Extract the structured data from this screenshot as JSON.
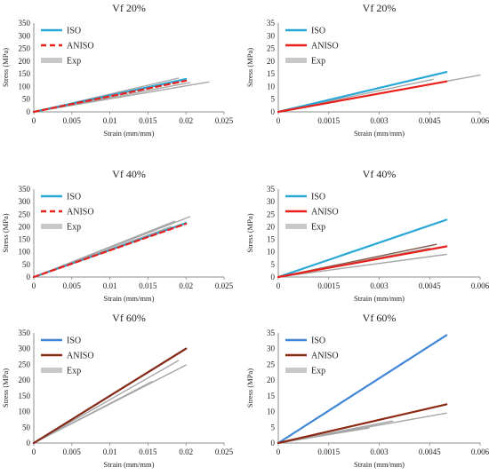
{
  "chart_data": [
    {
      "type": "line",
      "title": "Vf 20%",
      "xlabel": "Strain (mm/mm)",
      "ylabel": "Stress (MPa)",
      "xlim": [
        0,
        0.025
      ],
      "ylim": [
        0,
        350
      ],
      "xticks": [
        "0",
        "0.005",
        "0.01",
        "0.015",
        "0.02",
        "0.025"
      ],
      "yticks": [
        "0",
        "50",
        "100",
        "150",
        "200",
        "250",
        "300",
        "350"
      ],
      "legend": [
        "ISO",
        "ANISO",
        "Exp"
      ],
      "series": [
        {
          "name": "ISO",
          "color": "#29a8d6",
          "style": "solid",
          "x": [
            0,
            0.02
          ],
          "y": [
            0,
            130
          ]
        },
        {
          "name": "ANISO",
          "color": "#e8211d",
          "style": "dashed",
          "x": [
            0,
            0.02
          ],
          "y": [
            0,
            123
          ]
        },
        {
          "name": "Exp",
          "color": "#a6a6a6",
          "style": "solid",
          "x": [
            0,
            0.019
          ],
          "y": [
            0,
            133
          ]
        },
        {
          "name": "Exp",
          "color": "#a6a6a6",
          "style": "solid",
          "x": [
            0,
            0.023
          ],
          "y": [
            0,
            118
          ]
        },
        {
          "name": "Exp",
          "color": "#a6a6a6",
          "style": "solid",
          "x": [
            0,
            0.0205
          ],
          "y": [
            0,
            115
          ]
        }
      ]
    },
    {
      "type": "line",
      "title": "Vf 20%",
      "xlabel": "Strain (mm/mm)",
      "ylabel": "Stress (MPa)",
      "xlim": [
        0,
        0.006
      ],
      "ylim": [
        0,
        35
      ],
      "xticks": [
        "0",
        "0.0015",
        "0.003",
        "0.0045",
        "0.006"
      ],
      "yticks": [
        "0",
        "5",
        "10",
        "15",
        "20",
        "25",
        "30",
        "35"
      ],
      "legend": [
        "ISO",
        "ANISO",
        "Exp"
      ],
      "series": [
        {
          "name": "ISO",
          "color": "#29a8d6",
          "style": "solid",
          "x": [
            0,
            0.005
          ],
          "y": [
            0,
            15.7
          ]
        },
        {
          "name": "ANISO",
          "color": "#e8211d",
          "style": "solid",
          "x": [
            0,
            0.005
          ],
          "y": [
            0,
            12.0
          ]
        },
        {
          "name": "Exp",
          "color": "#a6a6a6",
          "style": "solid",
          "x": [
            0,
            0.006
          ],
          "y": [
            0,
            14.5
          ]
        },
        {
          "name": "Exp",
          "color": "#a6a6a6",
          "style": "solid",
          "x": [
            0,
            0.0046
          ],
          "y": [
            0,
            12.8
          ]
        },
        {
          "name": "Exp",
          "color": "#a6a6a6",
          "style": "solid",
          "x": [
            0,
            0.0048
          ],
          "y": [
            0,
            11.5
          ]
        }
      ]
    },
    {
      "type": "line",
      "title": "Vf 40%",
      "xlabel": "Strain (mm/mm)",
      "ylabel": "Stress (MPa)",
      "xlim": [
        0,
        0.025
      ],
      "ylim": [
        0,
        350
      ],
      "xticks": [
        "0",
        "0.005",
        "0.01",
        "0.015",
        "0.02",
        "0.025"
      ],
      "yticks": [
        "0",
        "50",
        "100",
        "150",
        "200",
        "250",
        "300",
        "350"
      ],
      "legend": [
        "ISO",
        "ANISO",
        "Exp"
      ],
      "series": [
        {
          "name": "ISO",
          "color": "#29a8d6",
          "style": "solid",
          "x": [
            0,
            0.02
          ],
          "y": [
            0,
            215
          ]
        },
        {
          "name": "ANISO",
          "color": "#e8211d",
          "style": "dashed",
          "x": [
            0,
            0.02
          ],
          "y": [
            0,
            212
          ]
        },
        {
          "name": "Exp",
          "color": "#a6a6a6",
          "style": "solid",
          "x": [
            0,
            0.0205
          ],
          "y": [
            0,
            240
          ]
        },
        {
          "name": "Exp",
          "color": "#a6a6a6",
          "style": "solid",
          "x": [
            0,
            0.0185
          ],
          "y": [
            0,
            222
          ]
        },
        {
          "name": "Exp",
          "color": "#a6a6a6",
          "style": "solid",
          "x": [
            0,
            0.018
          ],
          "y": [
            0,
            200
          ]
        }
      ]
    },
    {
      "type": "line",
      "title": "Vf 40%",
      "xlabel": "Strain (mm/mm)",
      "ylabel": "Stress (MPa)",
      "xlim": [
        0,
        0.006
      ],
      "ylim": [
        0,
        35
      ],
      "xticks": [
        "0",
        "0.0015",
        "0.003",
        "0.0045",
        "0.006"
      ],
      "yticks": [
        "0",
        "5",
        "10",
        "15",
        "20",
        "25",
        "30",
        "35"
      ],
      "legend": [
        "ISO",
        "ANISO",
        "Exp"
      ],
      "series": [
        {
          "name": "ISO",
          "color": "#29a8d6",
          "style": "solid",
          "x": [
            0,
            0.005
          ],
          "y": [
            0,
            22.8
          ]
        },
        {
          "name": "ANISO",
          "color": "#e8211d",
          "style": "solid",
          "x": [
            0,
            0.005
          ],
          "y": [
            0,
            12.2
          ]
        },
        {
          "name": "Exp",
          "color": "#7b5a4a",
          "style": "solid",
          "x": [
            0,
            0.0047
          ],
          "y": [
            0,
            13.0
          ]
        },
        {
          "name": "Exp",
          "color": "#a6a6a6",
          "style": "solid",
          "x": [
            0,
            0.005
          ],
          "y": [
            0,
            9.0
          ]
        },
        {
          "name": "Exp",
          "color": "#a6a6a6",
          "style": "solid",
          "x": [
            0,
            0.0045
          ],
          "y": [
            0,
            11.5
          ]
        }
      ]
    },
    {
      "type": "line",
      "title": "Vf 60%",
      "xlabel": "Strain (mm/mm)",
      "ylabel": "Stress (MPa)",
      "xlim": [
        0,
        0.025
      ],
      "ylim": [
        0,
        350
      ],
      "xticks": [
        "0",
        "0.005",
        "0.01",
        "0.015",
        "0.02",
        "0.025"
      ],
      "yticks": [
        "0",
        "50",
        "100",
        "150",
        "200",
        "250",
        "300",
        "350"
      ],
      "legend": [
        "ISO",
        "ANISO",
        "Exp"
      ],
      "series": [
        {
          "name": "ISO",
          "color": "#3f86d6",
          "style": "solid",
          "x": [
            0,
            0.02
          ],
          "y": [
            0,
            300
          ]
        },
        {
          "name": "ANISO",
          "color": "#8b2a12",
          "style": "solid",
          "x": [
            0,
            0.02
          ],
          "y": [
            0,
            300
          ]
        },
        {
          "name": "Exp",
          "color": "#a6a6a6",
          "style": "solid",
          "x": [
            0,
            0.02
          ],
          "y": [
            0,
            248
          ]
        },
        {
          "name": "Exp",
          "color": "#a6a6a6",
          "style": "solid",
          "x": [
            0,
            0.019
          ],
          "y": [
            0,
            262
          ]
        },
        {
          "name": "Exp",
          "color": "#a6a6a6",
          "style": "solid",
          "x": [
            0,
            0.0155
          ],
          "y": [
            0,
            195
          ]
        }
      ]
    },
    {
      "type": "line",
      "title": "Vf 60%",
      "xlabel": "Strain (mm/mm)",
      "ylabel": "Stress (MPa)",
      "xlim": [
        0,
        0.006
      ],
      "ylim": [
        0,
        35
      ],
      "xticks": [
        "0",
        "0.0015",
        "0.003",
        "0.0045",
        "0.006"
      ],
      "yticks": [
        "0",
        "5",
        "10",
        "15",
        "20",
        "25",
        "30",
        "35"
      ],
      "legend": [
        "ISO",
        "ANISO",
        "Exp"
      ],
      "series": [
        {
          "name": "ISO",
          "color": "#3f86d6",
          "style": "solid",
          "x": [
            0,
            0.005
          ],
          "y": [
            0,
            34.3
          ]
        },
        {
          "name": "ANISO",
          "color": "#8b2a12",
          "style": "solid",
          "x": [
            0,
            0.005
          ],
          "y": [
            0,
            12.3
          ]
        },
        {
          "name": "Exp",
          "color": "#a6a6a6",
          "style": "solid",
          "x": [
            0,
            0.0027
          ],
          "y": [
            0,
            4.8
          ]
        },
        {
          "name": "Exp",
          "color": "#a6a6a6",
          "style": "solid",
          "x": [
            0,
            0.0034
          ],
          "y": [
            0,
            7.0
          ]
        },
        {
          "name": "Exp",
          "color": "#a6a6a6",
          "style": "solid",
          "x": [
            0,
            0.005
          ],
          "y": [
            0,
            9.5
          ]
        }
      ]
    }
  ]
}
